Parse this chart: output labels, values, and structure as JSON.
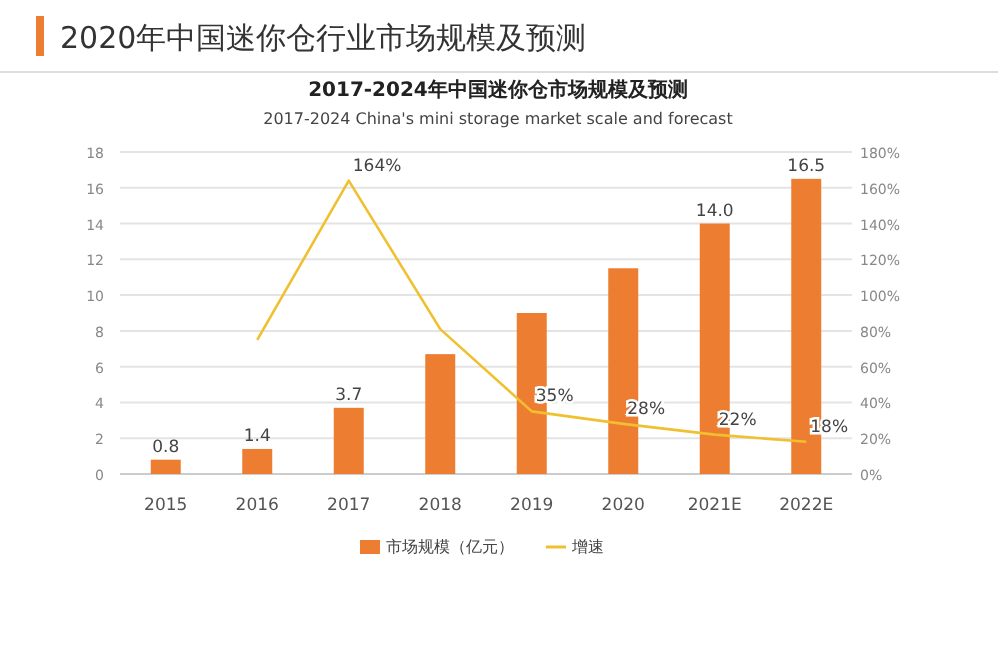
{
  "chart_data": {
    "type": "bar",
    "title": "2017-2024年中国迷你仓市场规模及预测",
    "subtitle": "2017-2024 China's mini storage market scale and forecast",
    "annotations": [
      "2020年中国迷你仓行业市场规模及预测"
    ],
    "categories": [
      "2015",
      "2016",
      "2017",
      "2018",
      "2019",
      "2020",
      "2021E",
      "2022E"
    ],
    "series": [
      {
        "name": "市场规模（亿元）",
        "color": "#ed7d31",
        "values": [
          0.8,
          1.4,
          3.7,
          6.7,
          9.0,
          11.5,
          14.0,
          16.5
        ],
        "value_labels": [
          "0.8",
          "1.4",
          "3.7",
          null,
          null,
          null,
          "14.0",
          "16.5"
        ]
      },
      {
        "name": "增速",
        "type": "line",
        "axis": "y2",
        "color": "#f0c030",
        "values": [
          null,
          75,
          164,
          81,
          35,
          28,
          22,
          18
        ],
        "value_labels": [
          null,
          null,
          "164%",
          null,
          "35%",
          "28%",
          "22%",
          "18%"
        ]
      }
    ],
    "ylim": [
      0,
      18
    ],
    "yticks": [
      0,
      2,
      4,
      6,
      8,
      10,
      12,
      14,
      16,
      18
    ],
    "y2lim": [
      0,
      180
    ],
    "y2ticks": [
      {
        "value": 0,
        "label": "0%"
      },
      {
        "value": 20,
        "label": "20%"
      },
      {
        "value": 40,
        "label": "40%"
      },
      {
        "value": 60,
        "label": "60%"
      },
      {
        "value": 80,
        "label": "80%"
      },
      {
        "value": 100,
        "label": "100%"
      },
      {
        "value": 120,
        "label": "120%"
      },
      {
        "value": 140,
        "label": "140%"
      },
      {
        "value": 160,
        "label": "160%"
      },
      {
        "value": 180,
        "label": "180%"
      }
    ],
    "grid": "y",
    "legend": "bottom"
  }
}
